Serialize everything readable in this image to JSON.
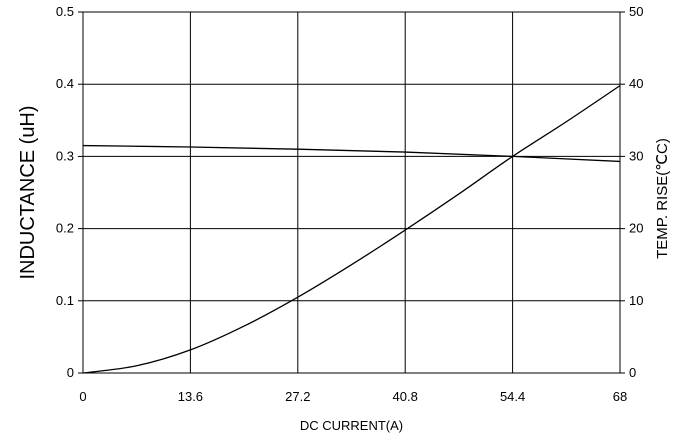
{
  "chart_data": {
    "type": "line",
    "title": "",
    "xlabel": "DC CURRENT(A)",
    "ylabel": "INDUCTANCE (uH)",
    "y2label": "TEMP. RISE(℃C)",
    "xlim": [
      0,
      68
    ],
    "ylim": [
      0,
      0.5
    ],
    "y2lim": [
      0,
      50
    ],
    "x_ticks": [
      "0",
      "13.6",
      "27.2",
      "40.8",
      "54.4",
      "68"
    ],
    "y_ticks": [
      "0",
      "0.1",
      "0.2",
      "0.3",
      "0.4",
      "0.5"
    ],
    "y2_ticks": [
      "0",
      "10",
      "20",
      "30",
      "40",
      "50"
    ],
    "grid": true,
    "series": [
      {
        "axis": "left",
        "x": [
          0,
          13.6,
          27.2,
          40.8,
          54.4,
          68
        ],
        "values": [
          0.315,
          0.313,
          0.31,
          0.306,
          0.3,
          0.293
        ]
      },
      {
        "axis": "right",
        "x": [
          0,
          6.8,
          13.6,
          20.4,
          27.2,
          34,
          40.8,
          47.6,
          54.4,
          61.2,
          68
        ],
        "values": [
          0,
          1,
          3.2,
          6.5,
          10.5,
          15,
          19.8,
          24.8,
          30,
          34.8,
          39.8
        ]
      }
    ]
  }
}
